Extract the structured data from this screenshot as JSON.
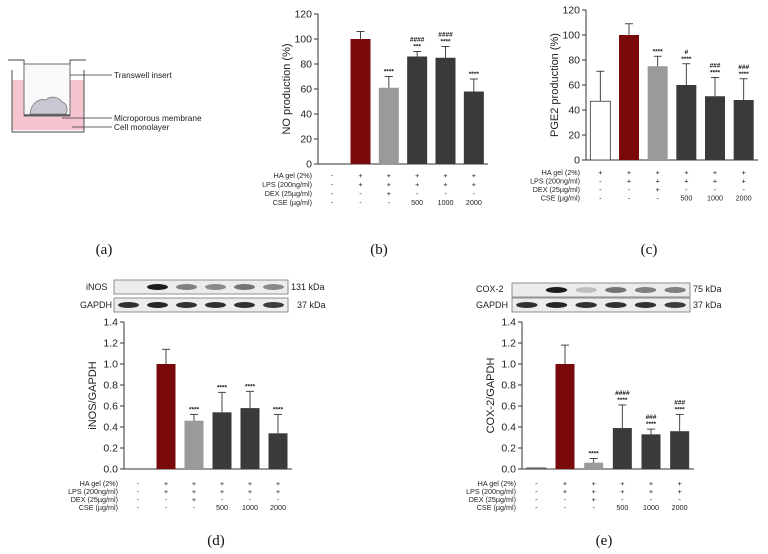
{
  "panels": {
    "a": {
      "label": "(a)",
      "annotations": [
        "Transwell insert",
        "Microporous membrane",
        "Cell monolayer"
      ]
    },
    "b": {
      "label": "(b)"
    },
    "c": {
      "label": "(c)"
    },
    "d": {
      "label": "(d)"
    },
    "e": {
      "label": "(e)"
    }
  },
  "conditions": {
    "labels": [
      "HA gel (2%)",
      "LPS (200ng/ml)",
      "DEX (25µg/ml)",
      "CSE (µg/ml)"
    ],
    "rows": [
      [
        "-",
        "+",
        "+",
        "+",
        "+",
        "+"
      ],
      [
        "-",
        "+",
        "+",
        "+",
        "+",
        "+"
      ],
      [
        "-",
        "-",
        "+",
        "-",
        "-",
        "-"
      ],
      [
        "-",
        "-",
        "-",
        "500",
        "1000",
        "2000"
      ]
    ],
    "rows_c": [
      [
        "+",
        "+",
        "+",
        "+",
        "+",
        "+"
      ],
      [
        "-",
        "+",
        "+",
        "+",
        "+",
        "+"
      ],
      [
        "-",
        "-",
        "+",
        "-",
        "-",
        "-"
      ],
      [
        "-",
        "-",
        "-",
        "500",
        "1000",
        "2000"
      ]
    ]
  },
  "colors": {
    "control": "#ffffff",
    "lps": "#7a0a0a",
    "dex": "#9a9a9a",
    "cse": "#3a3a3a",
    "axis": "#333333"
  },
  "blots": {
    "d": {
      "top_label": "iNOS",
      "bottom_label": "GAPDH",
      "top_kda": "131 kDa",
      "bottom_kda": "37 kDa"
    },
    "e": {
      "top_label": "COX-2",
      "bottom_label": "GAPDH",
      "top_kda": "75 kDa",
      "bottom_kda": "37 kDa"
    }
  },
  "chart_data": [
    {
      "id": "b",
      "type": "bar",
      "ylabel": "NO production (%)",
      "ylim": [
        0,
        120
      ],
      "yticks": [
        0,
        20,
        40,
        60,
        80,
        100,
        120
      ],
      "values": [
        0,
        100,
        61,
        86,
        85,
        58
      ],
      "errors": [
        0,
        6,
        9,
        4,
        9,
        10
      ],
      "sig_star": [
        "",
        "",
        "****",
        "***",
        "****",
        "****"
      ],
      "sig_hash": [
        "",
        "",
        "",
        "####",
        "####",
        ""
      ]
    },
    {
      "id": "c",
      "type": "bar",
      "ylabel": "PGE2 production  (%)",
      "ylim": [
        0,
        120
      ],
      "yticks": [
        0,
        20,
        40,
        60,
        80,
        100,
        120
      ],
      "values": [
        47,
        100,
        75,
        60,
        51,
        48
      ],
      "errors": [
        24,
        9,
        8,
        17,
        15,
        17
      ],
      "sig_star": [
        "",
        "",
        "****",
        "****",
        "****",
        "****"
      ],
      "sig_hash": [
        "",
        "",
        "",
        "#",
        "###",
        "###"
      ]
    },
    {
      "id": "d",
      "type": "bar",
      "ylabel": "iNOS/GAPDH",
      "ylim": [
        0,
        1.4
      ],
      "yticks": [
        "0.0",
        "0.2",
        "0.4",
        "0.6",
        "0.8",
        "1.0",
        "1.2",
        "1.4"
      ],
      "values": [
        0,
        1.0,
        0.46,
        0.54,
        0.58,
        0.34
      ],
      "errors": [
        0,
        0.14,
        0.06,
        0.19,
        0.16,
        0.18
      ],
      "sig_star": [
        "",
        "",
        "****",
        "****",
        "****",
        "****"
      ],
      "sig_hash": [
        "",
        "",
        "",
        "",
        "",
        ""
      ]
    },
    {
      "id": "e",
      "type": "bar",
      "ylabel": "COX-2/GAPDH",
      "ylim": [
        0,
        1.4
      ],
      "yticks": [
        "0.0",
        "0.2",
        "0.4",
        "0.6",
        "0.8",
        "1.0",
        "1.2",
        "1.4"
      ],
      "values": [
        0.01,
        1.0,
        0.06,
        0.39,
        0.33,
        0.36
      ],
      "errors": [
        0,
        0.18,
        0.04,
        0.22,
        0.05,
        0.16
      ],
      "sig_star": [
        "",
        "",
        "****",
        "****",
        "****",
        "****"
      ],
      "sig_hash": [
        "",
        "",
        "",
        "####",
        "###",
        "###"
      ]
    }
  ]
}
